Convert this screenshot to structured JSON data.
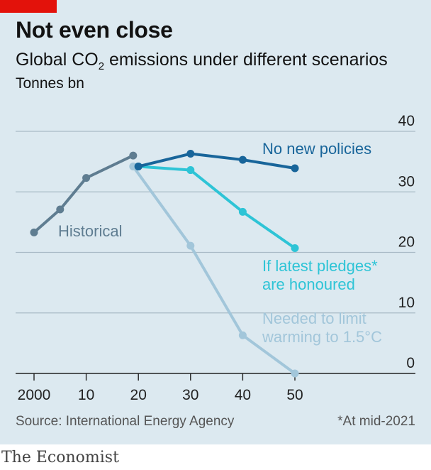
{
  "header": {
    "title": "Not even close",
    "subtitle_prefix": "Global CO",
    "subtitle_sub": "2",
    "subtitle_suffix": " emissions under different scenarios",
    "units": "Tonnes bn"
  },
  "footer": {
    "source": "Source: International Energy Agency",
    "footnote": "*At mid-2021",
    "brand": "The Economist"
  },
  "colors": {
    "background": "#dce9f0",
    "accent": "#e3120b",
    "historical": "#5f7d91",
    "no_new_policies": "#18659a",
    "pledges": "#2ec4d6",
    "limit_1_5": "#a2c6da",
    "grid": "#a9bac6"
  },
  "chart_data": {
    "type": "line",
    "ylim": [
      0,
      40
    ],
    "xlim": [
      1999,
      2052
    ],
    "yticks": [
      0,
      10,
      20,
      30,
      40
    ],
    "ytick_labels": [
      "0",
      "10",
      "20",
      "30",
      "40"
    ],
    "xticks": [
      2000,
      2010,
      2020,
      2030,
      2040,
      2050
    ],
    "xtick_labels": [
      "2000",
      "10",
      "20",
      "30",
      "40",
      "50"
    ],
    "series": [
      {
        "name": "Historical",
        "label_lines": [
          "Historical"
        ],
        "color_key": "historical",
        "points": [
          [
            2000,
            23.3
          ],
          [
            2005,
            27.1
          ],
          [
            2010,
            32.3
          ],
          [
            2019,
            36.0
          ]
        ]
      },
      {
        "name": "No new policies",
        "label_lines": [
          "No new policies"
        ],
        "color_key": "no_new_policies",
        "points": [
          [
            2020,
            34.2
          ],
          [
            2030,
            36.3
          ],
          [
            2040,
            35.3
          ],
          [
            2050,
            33.9
          ]
        ]
      },
      {
        "name": "If latest pledges* are honoured",
        "label_lines": [
          "If latest pledges*",
          "are honoured"
        ],
        "color_key": "pledges",
        "points": [
          [
            2020,
            34.2
          ],
          [
            2030,
            33.6
          ],
          [
            2040,
            26.7
          ],
          [
            2050,
            20.7
          ]
        ]
      },
      {
        "name": "Needed to limit warming to 1.5°C",
        "label_lines": [
          "Needed to limit",
          "warming to 1.5°C"
        ],
        "color_key": "limit_1_5",
        "points": [
          [
            2019,
            34.2
          ],
          [
            2030,
            21.1
          ],
          [
            2040,
            6.3
          ],
          [
            2050,
            0.0
          ]
        ]
      }
    ]
  }
}
